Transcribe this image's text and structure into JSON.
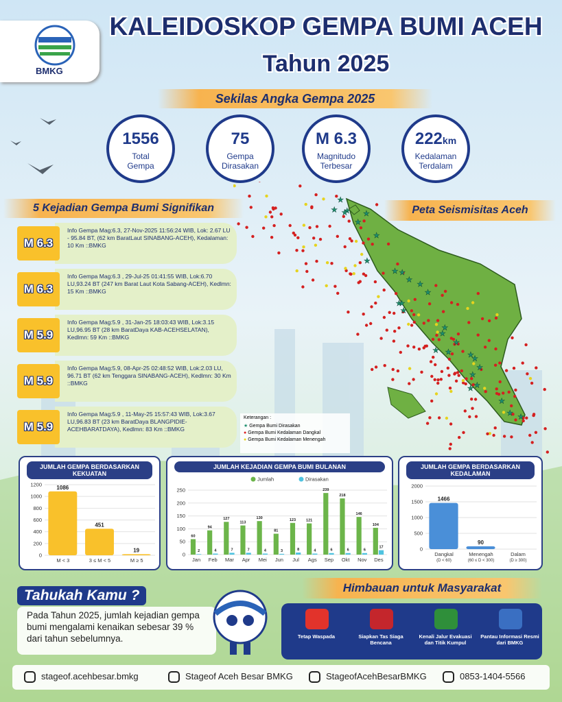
{
  "header": {
    "logo": "BMKG",
    "title": "KALEIDOSKOP GEMPA BUMI ACEH",
    "subtitle": "Tahun 2025"
  },
  "stats": {
    "heading": "Sekilas Angka Gempa 2025",
    "items": [
      {
        "value": "1556",
        "label": "Total Gempa"
      },
      {
        "value": "75",
        "label": "Gempa Dirasakan"
      },
      {
        "value": "M 6.3",
        "label": "Magnitudo Terbesar"
      },
      {
        "value": "222",
        "unit": "km",
        "label": "Kedalaman Terdalam"
      }
    ]
  },
  "significant": {
    "heading": "5 Kejadian Gempa Bumi Signifikan",
    "events": [
      {
        "mag": "M 6.3",
        "text": "Info Gempa Mag:6.3, 27-Nov-2025 11:56:24 WIB, Lok: 2.67 LU - 95.84 BT, (62 km BaratLaut SINABANG-ACEH), Kedalaman: 10 Km ::BMKG"
      },
      {
        "mag": "M 6.3",
        "text": "Info Gempa Mag:6.3 , 29-Jul-25 01:41:55 WIB, Lok:6.70 LU,93.24 BT (247 km Barat Laut Kota Sabang-ACEH), Kedlmn: 15 Km ::BMKG"
      },
      {
        "mag": "M 5.9",
        "text": "Info Gempa Mag:5.9 , 31-Jan-25 18:03:43 WIB, Lok:3.15 LU,96.95 BT (28 km BaratDaya KAB-ACEHSELATAN), Kedlmn: 59 Km ::BMKG"
      },
      {
        "mag": "M 5.9",
        "text": "Info Gempa Mag:5.9, 08-Apr-25 02:48:52 WIB, Lok:2.03 LU, 96.71 BT (62 km Tenggara SINABANG-ACEH), Kedlmn: 30 Km ::BMKG"
      },
      {
        "mag": "M 5.9",
        "text": "Info Gempa Mag:5.9 , 11-May-25 15:57:43 WIB, Lok:3.67 LU,96.83 BT (23 km BaratDaya BLANGPIDIE-ACEHBARATDAYA), Kedlmn: 83 Km ::BMKG"
      }
    ]
  },
  "map": {
    "title": "Peta Seismisitas Aceh",
    "legend_title": "Keterangan :",
    "legend": [
      "Gempa Bumi Dirasakan",
      "Gempa Bumi Kedalaman Dangkal",
      "Gempa Bumi Kedalaman Menengah"
    ]
  },
  "chart_data": [
    {
      "type": "bar",
      "title": "JUMLAH GEMPA BERDASARKAN KEKUATAN",
      "categories": [
        "M < 3",
        "3 ≤ M < 5",
        "M ≥ 5"
      ],
      "values": [
        1086,
        451,
        19
      ],
      "color": "#f9c12b",
      "ylim": [
        0,
        1200
      ],
      "yticks": [
        0,
        200,
        400,
        600,
        800,
        1000,
        1200
      ],
      "grid": true
    },
    {
      "type": "bar",
      "title": "JUMLAH KEJADIAN GEMPA BUMI BULANAN",
      "categories": [
        "Jan",
        "Feb",
        "Mar",
        "Apr",
        "Mei",
        "Jun",
        "Jul",
        "Ags",
        "Sep",
        "Okt",
        "Nov",
        "Des"
      ],
      "series": [
        {
          "name": "Jumlah",
          "color": "#6cb54a",
          "values": [
            60,
            94,
            127,
            113,
            130,
            81,
            123,
            121,
            239,
            218,
            146,
            104
          ]
        },
        {
          "name": "Dirasakan",
          "color": "#4fc3e0",
          "values": [
            2,
            4,
            7,
            7,
            4,
            3,
            8,
            4,
            6,
            6,
            6,
            17
          ]
        }
      ],
      "ylim": [
        0,
        250
      ],
      "yticks": [
        0,
        50,
        100,
        150,
        200,
        250
      ],
      "grid": true,
      "legend": "top"
    },
    {
      "type": "bar",
      "title": "JUMLAH GEMPA BERDASARKAN KEDALAMAN",
      "categories": [
        "Dangkal",
        "Menengah",
        "Dalam"
      ],
      "category_sublabels": [
        "(D < 60)",
        "(60 ≤ D < 300)",
        "(D ≥ 300)"
      ],
      "values": [
        1466,
        90,
        0
      ],
      "value_labels": [
        "1466",
        "90",
        null
      ],
      "color": "#4a8fd8",
      "ylim": [
        0,
        2000
      ],
      "yticks": [
        0,
        500,
        1000,
        1500,
        2000
      ],
      "grid": true
    }
  ],
  "fact": {
    "heading": "Tahukah Kamu ?",
    "text": "Pada Tahun 2025, jumlah kejadian gempa bumi mengalami kenaikan sebesar 39 % dari tahun sebelumnya."
  },
  "advice": {
    "heading": "Himbauan untuk Masyarakat",
    "items": [
      "Tetap Waspada",
      "Siapkan Tas Siaga Bencana",
      "Kenali Jalur Evakuasi dan Titik Kumpul",
      "Pantau Informasi Resmi dari BMKG"
    ]
  },
  "footer": [
    "stageof.acehbesar.bmkg",
    "Stageof Aceh Besar BMKG",
    "StageofAcehBesarBMKG",
    "0853-1404-5566"
  ]
}
